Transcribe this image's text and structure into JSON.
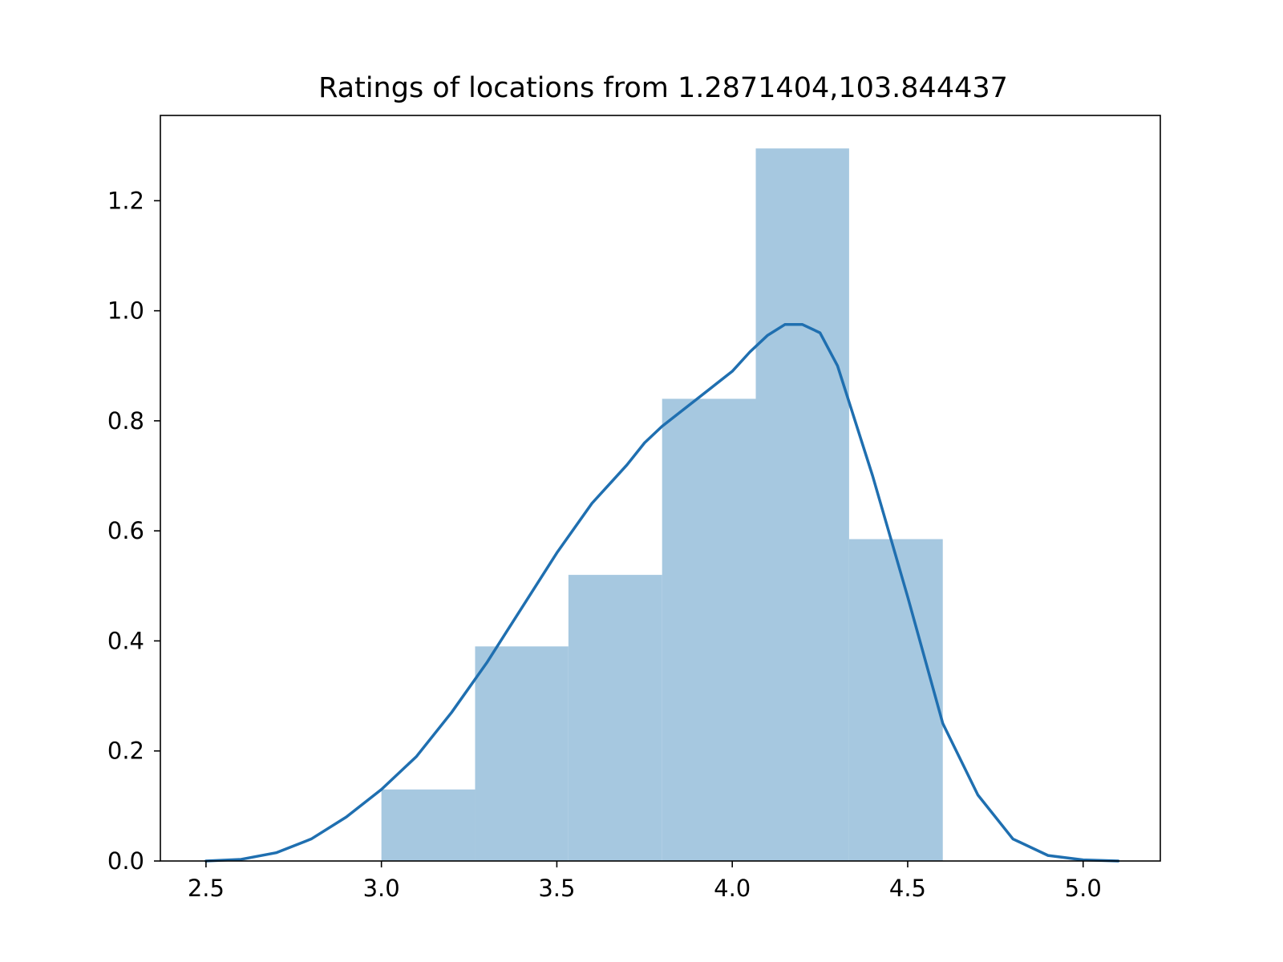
{
  "chart_data": {
    "type": "histogram",
    "title": "Ratings of locations from 1.2871404,103.844437",
    "xlabel": "",
    "ylabel": "",
    "xlim": [
      2.37,
      5.22
    ],
    "ylim": [
      0.0,
      1.355
    ],
    "xticks": [
      "2.5",
      "3.0",
      "3.5",
      "4.0",
      "4.5",
      "5.0"
    ],
    "yticks": [
      "0.0",
      "0.2",
      "0.4",
      "0.6",
      "0.8",
      "1.0",
      "1.2"
    ],
    "grid": false,
    "legend": "none",
    "bar_color": "#a6c8e0",
    "line_color": "#1f6fb0",
    "bins": [
      {
        "x0": 3.0,
        "x1": 3.267,
        "value": 0.13
      },
      {
        "x0": 3.267,
        "x1": 3.533,
        "value": 0.39
      },
      {
        "x0": 3.533,
        "x1": 3.8,
        "value": 0.52
      },
      {
        "x0": 3.8,
        "x1": 4.067,
        "value": 0.84
      },
      {
        "x0": 4.067,
        "x1": 4.333,
        "value": 1.295
      },
      {
        "x0": 4.333,
        "x1": 4.6,
        "value": 0.585
      }
    ],
    "kde": {
      "x": [
        2.5,
        2.6,
        2.7,
        2.8,
        2.9,
        3.0,
        3.1,
        3.2,
        3.3,
        3.4,
        3.5,
        3.6,
        3.7,
        3.75,
        3.8,
        3.9,
        4.0,
        4.05,
        4.1,
        4.15,
        4.2,
        4.25,
        4.3,
        4.35,
        4.4,
        4.5,
        4.6,
        4.7,
        4.8,
        4.9,
        5.0,
        5.1
      ],
      "y": [
        0.0,
        0.003,
        0.015,
        0.04,
        0.08,
        0.13,
        0.19,
        0.27,
        0.36,
        0.46,
        0.56,
        0.65,
        0.72,
        0.76,
        0.79,
        0.84,
        0.89,
        0.925,
        0.955,
        0.975,
        0.975,
        0.96,
        0.9,
        0.8,
        0.7,
        0.48,
        0.25,
        0.12,
        0.04,
        0.01,
        0.002,
        0.0
      ]
    }
  }
}
